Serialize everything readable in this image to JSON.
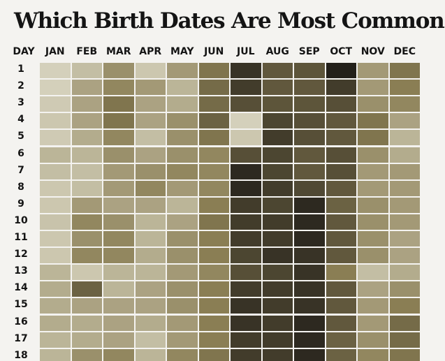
{
  "chart_data": {
    "type": "heatmap",
    "title": "Which Birth Dates Are Most Common?",
    "row_header": "DAY",
    "columns": [
      "JAN",
      "FEB",
      "MAR",
      "APR",
      "MAY",
      "JUN",
      "JUL",
      "AUG",
      "SEP",
      "OCT",
      "NOV",
      "DEC"
    ],
    "rows": [
      "1",
      "2",
      "3",
      "4",
      "5",
      "6",
      "7",
      "8",
      "9",
      "10",
      "11",
      "12",
      "13",
      "14",
      "15",
      "16",
      "17",
      "18"
    ],
    "color_scale": {
      "low": "#dcd9c6",
      "high": "#23201a",
      "meaning": "darker shade = more common birth date"
    },
    "values": [
      [
        0.05,
        0.15,
        0.4,
        0.1,
        0.35,
        0.55,
        0.9,
        0.7,
        0.72,
        1.0,
        0.35,
        0.55
      ],
      [
        0.05,
        0.3,
        0.45,
        0.35,
        0.2,
        0.6,
        0.85,
        0.7,
        0.7,
        0.85,
        0.35,
        0.5
      ],
      [
        0.08,
        0.3,
        0.55,
        0.3,
        0.25,
        0.6,
        0.75,
        0.72,
        0.72,
        0.75,
        0.4,
        0.45
      ],
      [
        0.1,
        0.3,
        0.55,
        0.3,
        0.4,
        0.65,
        0.05,
        0.8,
        0.75,
        0.7,
        0.55,
        0.3
      ],
      [
        0.08,
        0.25,
        0.45,
        0.15,
        0.4,
        0.55,
        0.1,
        0.85,
        0.75,
        0.7,
        0.55,
        0.2
      ],
      [
        0.2,
        0.2,
        0.4,
        0.3,
        0.4,
        0.45,
        0.75,
        0.8,
        0.7,
        0.75,
        0.4,
        0.25
      ],
      [
        0.15,
        0.15,
        0.35,
        0.4,
        0.45,
        0.45,
        0.95,
        0.8,
        0.7,
        0.75,
        0.35,
        0.35
      ],
      [
        0.1,
        0.15,
        0.35,
        0.45,
        0.35,
        0.45,
        0.95,
        0.85,
        0.78,
        0.7,
        0.35,
        0.35
      ],
      [
        0.1,
        0.35,
        0.3,
        0.3,
        0.2,
        0.5,
        0.85,
        0.8,
        0.95,
        0.65,
        0.4,
        0.35
      ],
      [
        0.12,
        0.45,
        0.4,
        0.2,
        0.3,
        0.55,
        0.85,
        0.85,
        0.95,
        0.7,
        0.4,
        0.35
      ],
      [
        0.1,
        0.4,
        0.45,
        0.2,
        0.4,
        0.5,
        0.85,
        0.85,
        0.95,
        0.7,
        0.4,
        0.3
      ],
      [
        0.1,
        0.45,
        0.45,
        0.25,
        0.4,
        0.5,
        0.8,
        0.9,
        0.9,
        0.7,
        0.4,
        0.3
      ],
      [
        0.2,
        0.1,
        0.2,
        0.2,
        0.35,
        0.45,
        0.75,
        0.8,
        0.9,
        0.5,
        0.15,
        0.25
      ],
      [
        0.25,
        0.65,
        0.2,
        0.3,
        0.4,
        0.5,
        0.85,
        0.85,
        0.9,
        0.7,
        0.3,
        0.4
      ],
      [
        0.25,
        0.3,
        0.3,
        0.3,
        0.4,
        0.5,
        0.9,
        0.85,
        0.9,
        0.7,
        0.35,
        0.5
      ],
      [
        0.25,
        0.25,
        0.3,
        0.25,
        0.35,
        0.5,
        0.9,
        0.85,
        0.95,
        0.7,
        0.35,
        0.6
      ],
      [
        0.2,
        0.25,
        0.3,
        0.15,
        0.35,
        0.5,
        0.85,
        0.85,
        0.95,
        0.65,
        0.4,
        0.6
      ],
      [
        0.2,
        0.4,
        0.45,
        0.2,
        0.45,
        0.55,
        0.85,
        0.85,
        0.95,
        0.65,
        0.45,
        0.55
      ]
    ]
  }
}
